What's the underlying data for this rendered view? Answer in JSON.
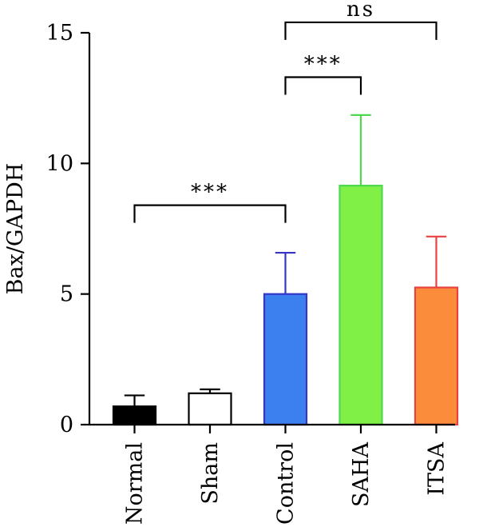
{
  "chart_data": {
    "type": "bar",
    "ylabel": "Bax/GAPDH",
    "xlabel": "",
    "ylim": [
      0,
      15
    ],
    "yticks": [
      0,
      5,
      10,
      15
    ],
    "categories": [
      "Normal",
      "Sham",
      "Control",
      "SAHA",
      "ITSA"
    ],
    "values": [
      0.7,
      1.2,
      5.0,
      9.15,
      5.25
    ],
    "errors": [
      0.42,
      0.15,
      1.58,
      2.7,
      1.95
    ],
    "fill_colors": [
      "#000000",
      "#ffffff",
      "#3c80f0",
      "#80f046",
      "#fb8c3c"
    ],
    "stroke_colors": [
      "#000000",
      "#000000",
      "#3535c6",
      "#4fd84f",
      "#e8413f"
    ],
    "significance": [
      {
        "from": "Normal",
        "to": "Control",
        "label": "***"
      },
      {
        "from": "Control",
        "to": "SAHA",
        "label": "***"
      },
      {
        "from": "Control",
        "to": "ITSA",
        "label": "ns"
      }
    ]
  }
}
